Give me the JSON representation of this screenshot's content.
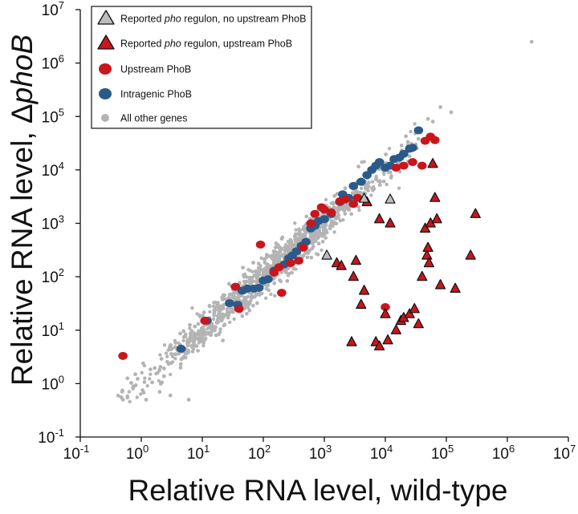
{
  "chart_data": {
    "type": "scatter",
    "x_scale": "log10",
    "y_scale": "log10",
    "xlabel": "Relative RNA level, wild-type",
    "ylabel": "Relative RNA level, ΔphoB",
    "xlim": [
      0.1,
      10000000
    ],
    "ylim": [
      0.1,
      10000000
    ],
    "x_tick_exponents": [
      -1,
      0,
      1,
      2,
      3,
      4,
      5,
      6,
      7
    ],
    "y_tick_exponents": [
      -1,
      0,
      1,
      2,
      3,
      4,
      5,
      6,
      7
    ],
    "tick_base": "10",
    "legend": {
      "placement": "top-left",
      "entries": [
        {
          "key": "no_upstream",
          "marker": "triangle",
          "color": "#bdbdbd",
          "pre": "Reported ",
          "italic": "pho",
          "post": " regulon, no upstream PhoB"
        },
        {
          "key": "upstream_reported",
          "marker": "triangle",
          "color": "#c8161d",
          "pre": "Reported ",
          "italic": "pho",
          "post": " regulon, upstream PhoB"
        },
        {
          "key": "upstream_phob",
          "marker": "circle",
          "color": "#c8161d",
          "pre": "Upstream PhoB",
          "italic": "",
          "post": ""
        },
        {
          "key": "intragenic_phob",
          "marker": "circle",
          "color": "#2a5a8a",
          "pre": "Intragenic PhoB",
          "italic": "",
          "post": ""
        },
        {
          "key": "other",
          "marker": "small-circle",
          "color": "#b4b4b4",
          "pre": "All other genes",
          "italic": "",
          "post": ""
        }
      ]
    },
    "series": [
      {
        "name": "All other genes",
        "color": "#b4b4b4",
        "marker": "small-circle",
        "description": "approx. 4000 genes lying along the diagonal (log10 y ≈ log10 x, spread ±0.3) from about 0.5 to 40000, plus one outlier",
        "trend": {
          "x_range": [
            0.5,
            40000
          ],
          "slope": 1.0,
          "intercept": 0.0,
          "spread_log10": 0.3,
          "count": 4000
        },
        "points": [
          [
            2500000,
            2500000
          ],
          [
            120000,
            120000
          ],
          [
            60000,
            80000
          ],
          [
            0.5,
            0.5
          ],
          [
            1.2,
            0.5
          ],
          [
            3,
            0.6
          ],
          [
            0.8,
            1.5
          ],
          [
            2,
            0.7
          ],
          [
            6,
            0.5
          ],
          [
            80000,
            150000
          ],
          [
            50000,
            90000
          ]
        ]
      },
      {
        "name": "Intragenic PhoB",
        "color": "#2a5a8a",
        "marker": "circle",
        "points": [
          [
            4.5,
            4.5
          ],
          [
            12,
            15
          ],
          [
            28,
            32
          ],
          [
            38,
            30
          ],
          [
            45,
            55
          ],
          [
            55,
            60
          ],
          [
            70,
            60
          ],
          [
            85,
            62
          ],
          [
            100,
            85
          ],
          [
            120,
            90
          ],
          [
            150,
            130
          ],
          [
            180,
            150
          ],
          [
            220,
            170
          ],
          [
            260,
            220
          ],
          [
            300,
            250
          ],
          [
            350,
            300
          ],
          [
            420,
            380
          ],
          [
            500,
            450
          ],
          [
            600,
            800
          ],
          [
            700,
            900
          ],
          [
            800,
            1100
          ],
          [
            1000,
            1200
          ],
          [
            1300,
            1500
          ],
          [
            1800,
            2500
          ],
          [
            2000,
            3500
          ],
          [
            2500,
            3000
          ],
          [
            3000,
            5000
          ],
          [
            4000,
            6000
          ],
          [
            5000,
            8000
          ],
          [
            6000,
            10000
          ],
          [
            7000,
            12000
          ],
          [
            8000,
            14000
          ],
          [
            10000,
            11000
          ],
          [
            12000,
            12000
          ],
          [
            14000,
            16000
          ],
          [
            17000,
            17000
          ],
          [
            20000,
            20000
          ],
          [
            25000,
            25000
          ],
          [
            28000,
            26000
          ],
          [
            35000,
            55000
          ]
        ]
      },
      {
        "name": "Upstream PhoB",
        "color": "#c8161d",
        "marker": "circle",
        "points": [
          [
            0.5,
            3.3
          ],
          [
            11,
            15
          ],
          [
            35,
            65
          ],
          [
            40,
            25
          ],
          [
            90,
            400
          ],
          [
            150,
            120
          ],
          [
            180,
            150
          ],
          [
            200,
            50
          ],
          [
            280,
            180
          ],
          [
            380,
            200
          ],
          [
            450,
            350
          ],
          [
            600,
            1000
          ],
          [
            700,
            1500
          ],
          [
            900,
            2000
          ],
          [
            1000,
            1800
          ],
          [
            1300,
            1600
          ],
          [
            1800,
            2600
          ],
          [
            2200,
            2800
          ],
          [
            3000,
            2300
          ],
          [
            3500,
            3000
          ],
          [
            10000,
            27
          ],
          [
            15000,
            11000
          ],
          [
            20000,
            12000
          ],
          [
            28000,
            14000
          ],
          [
            40000,
            12000
          ],
          [
            55000,
            42000
          ],
          [
            65000,
            36000
          ],
          [
            45000,
            35000
          ]
        ]
      },
      {
        "name": "Reported pho regulon, upstream PhoB",
        "color": "#c8161d",
        "marker": "triangle",
        "points": [
          [
            1600,
            180
          ],
          [
            1900,
            160
          ],
          [
            2800,
            6
          ],
          [
            3000,
            100
          ],
          [
            3300,
            200
          ],
          [
            4000,
            30
          ],
          [
            4500,
            55
          ],
          [
            5000,
            2500
          ],
          [
            7000,
            6
          ],
          [
            8000,
            5
          ],
          [
            8000,
            1200
          ],
          [
            10000,
            20
          ],
          [
            11000,
            6.5
          ],
          [
            12000,
            1000
          ],
          [
            15000,
            10
          ],
          [
            18000,
            15
          ],
          [
            20000,
            17
          ],
          [
            25000,
            20
          ],
          [
            30000,
            25
          ],
          [
            35000,
            13
          ],
          [
            40000,
            100
          ],
          [
            45000,
            800
          ],
          [
            48000,
            250
          ],
          [
            50000,
            350
          ],
          [
            52000,
            180
          ],
          [
            55000,
            1000
          ],
          [
            60000,
            13000
          ],
          [
            65000,
            3000
          ],
          [
            70000,
            1200
          ],
          [
            80000,
            70
          ],
          [
            140000,
            60
          ],
          [
            250000,
            250
          ],
          [
            300000,
            1500
          ]
        ]
      },
      {
        "name": "Reported pho regulon, no upstream PhoB",
        "color": "#bdbdbd",
        "marker": "triangle",
        "points": [
          [
            1100,
            250
          ],
          [
            4500,
            2900
          ],
          [
            12000,
            2800
          ]
        ]
      }
    ]
  }
}
